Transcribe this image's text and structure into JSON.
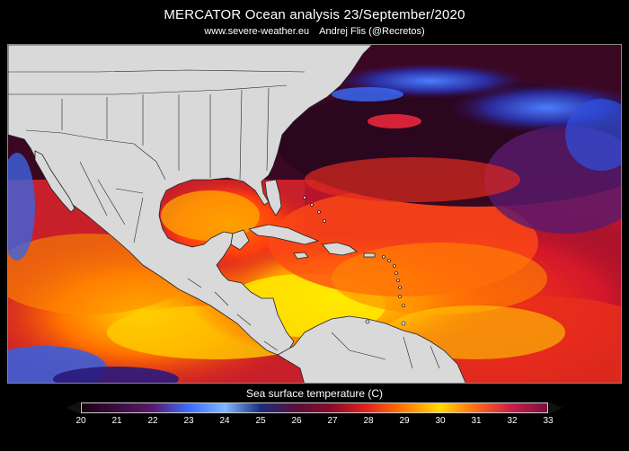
{
  "header": {
    "title": "MERCATOR Ocean analysis  23/September/2020",
    "website": "www.severe-weather.eu",
    "author": "Andrej Flis (@Recretos)"
  },
  "legend": {
    "title": "Sea surface temperature (C)",
    "ticks": [
      "20",
      "21",
      "22",
      "23",
      "24",
      "25",
      "26",
      "27",
      "28",
      "29",
      "30",
      "31",
      "32",
      "33"
    ],
    "colors": {
      "c20": "#1a0010",
      "c22": "#5a1a6e",
      "c23": "#3b6cff",
      "c24": "#7fb8ff",
      "c25": "#1c2c7a",
      "c26": "#5a0e3a",
      "c27": "#8b0c2a",
      "c28": "#e3261a",
      "c29": "#ff7a00",
      "c30": "#ffd800",
      "c31": "#ff6a1a",
      "c32": "#c91d48",
      "c33": "#7a1040"
    }
  }
}
